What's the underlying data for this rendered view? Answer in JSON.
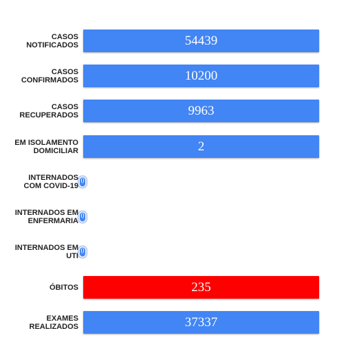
{
  "colors": {
    "bar_default": "#4285f4",
    "bar_highlight": "#ff0000"
  },
  "chart_data": {
    "type": "bar",
    "orientation": "horizontal",
    "categories": [
      "CASOS\nNOTIFICADOS",
      "CASOS\nCONFIRMADOS",
      "CASOS\nRECUPERADOS",
      "EM ISOLAMENTO\nDOMICILIAR",
      "INTERNADOS\nCOM COVID-19",
      "INTERNADOS EM\nENFERMARIA",
      "INTERNADOS EM\nUTI",
      "ÓBITOS",
      "EXAMES\nREALIZADOS"
    ],
    "values": [
      54439,
      10200,
      9963,
      2,
      0,
      0,
      0,
      235,
      37337
    ],
    "value_labels": [
      "54439",
      "10200",
      "9963",
      "2",
      "0",
      "0",
      "0",
      "235",
      "37337"
    ],
    "bar_colors": [
      "#4285f4",
      "#4285f4",
      "#4285f4",
      "#4285f4",
      "#4285f4",
      "#4285f4",
      "#4285f4",
      "#ff0000",
      "#4285f4"
    ],
    "title": "",
    "xlabel": "",
    "ylabel": "",
    "grid": false,
    "legend": "none"
  }
}
